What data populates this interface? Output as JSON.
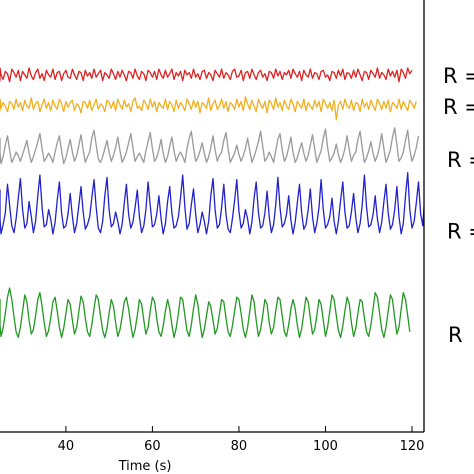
{
  "chart_data": {
    "type": "line",
    "title": "",
    "xlabel": "Time (s)",
    "ylabel": "",
    "xlim": [
      22,
      120
    ],
    "x_ticks": [
      40,
      60,
      80,
      100,
      120
    ],
    "x_tick_labels": [
      "40",
      "60",
      "80",
      "100",
      "120"
    ],
    "grid": false,
    "legend": "none",
    "x_sample_start": 22,
    "x_sample_step": 0.5,
    "series": [
      {
        "color": "#dd2222",
        "label": "R =",
        "baseline": 0.65,
        "values": [
          0.02,
          -0.05,
          0.04,
          -0.01,
          -0.03,
          0.06,
          0.0,
          -0.04,
          0.03,
          0.01,
          -0.06,
          0.05,
          0.02,
          -0.02,
          0.04,
          -0.05,
          0.03,
          0.0,
          -0.03,
          0.06,
          -0.01,
          -0.04,
          0.02,
          0.05,
          -0.03,
          0.01,
          -0.05,
          0.04,
          0.0,
          -0.02,
          0.05,
          -0.04,
          0.02,
          0.03,
          -0.05,
          0.01,
          0.04,
          -0.02,
          -0.03,
          0.05,
          0.0,
          -0.04,
          0.03,
          0.02,
          -0.05,
          0.04,
          -0.01,
          0.02,
          -0.03,
          0.05,
          -0.02,
          0.01,
          0.04,
          -0.05,
          0.02,
          0.0,
          -0.03,
          0.05,
          0.01,
          -0.04,
          0.03,
          -0.02,
          0.04,
          0.0,
          -0.05,
          0.03,
          0.02,
          -0.03,
          0.05,
          -0.01,
          -0.04,
          0.03,
          0.01,
          -0.05,
          0.04,
          0.02,
          -0.02,
          0.03,
          -0.04,
          0.05,
          0.0,
          -0.03,
          0.04,
          -0.02,
          0.01,
          0.05,
          -0.04,
          0.02,
          -0.01,
          0.03,
          -0.05,
          0.04,
          0.0,
          0.02,
          -0.03,
          0.05,
          -0.02,
          0.01,
          -0.04,
          0.03,
          0.04,
          -0.03,
          0.02,
          0.0,
          -0.05,
          0.04,
          0.01,
          -0.02,
          0.05,
          -0.03,
          0.02,
          0.0,
          -0.04,
          0.03,
          0.05,
          -0.02,
          -0.01,
          0.04,
          -0.05,
          0.02,
          0.03,
          -0.03,
          0.05,
          0.0,
          -0.04,
          0.02,
          0.04,
          -0.02,
          0.01,
          -0.05,
          0.03,
          0.02,
          -0.03,
          0.05,
          -0.01,
          0.03,
          -0.04,
          0.02,
          0.0,
          0.04,
          -0.03,
          0.05,
          0.01,
          -0.02,
          0.03,
          -0.05,
          0.04,
          0.0,
          -0.02,
          0.05,
          -0.03,
          0.02,
          0.01,
          -0.04,
          0.03,
          0.04,
          -0.02,
          0.0,
          -0.05,
          0.03,
          0.02,
          -0.03,
          0.04,
          -0.01,
          0.05,
          -0.04,
          0.02,
          0.01,
          -0.03,
          0.04,
          -0.02,
          0.05,
          0.0,
          -0.05,
          0.03,
          0.02,
          -0.04,
          0.04,
          0.01,
          -0.02,
          0.06,
          -0.03,
          0.02,
          0.0,
          -0.04,
          0.05,
          -0.01,
          0.03,
          -0.02,
          0.04,
          -0.06,
          0.05,
          0.02,
          -0.03,
          0.06,
          0.01,
          0.04
        ]
      },
      {
        "color": "#f0b020",
        "label": "R =",
        "baseline": 0.92,
        "values": [
          0.0,
          -0.04,
          0.05,
          0.01,
          -0.03,
          0.06,
          -0.02,
          0.03,
          0.0,
          -0.05,
          0.04,
          0.02,
          -0.03,
          0.06,
          -0.01,
          0.03,
          -0.04,
          0.05,
          0.0,
          -0.02,
          0.07,
          -0.03,
          0.02,
          0.04,
          -0.05,
          0.01,
          0.06,
          -0.02,
          0.03,
          -0.04,
          0.05,
          0.0,
          -0.03,
          0.06,
          0.02,
          -0.05,
          0.04,
          -0.01,
          0.03,
          0.05,
          -0.04,
          0.02,
          0.0,
          -0.06,
          0.04,
          0.03,
          -0.02,
          0.05,
          -0.04,
          0.01,
          0.06,
          -0.03,
          0.02,
          0.0,
          -0.05,
          0.05,
          0.03,
          -0.02,
          0.04,
          -0.04,
          0.06,
          0.01,
          -0.03,
          0.05,
          -0.01,
          0.02,
          -0.05,
          0.04,
          0.07,
          -0.02,
          0.0,
          -0.04,
          0.05,
          0.02,
          -0.03,
          0.06,
          -0.01,
          0.04,
          -0.05,
          0.03,
          0.0,
          -0.02,
          0.06,
          -0.03,
          0.04,
          0.01,
          -0.05,
          0.05,
          -0.02,
          0.03,
          0.0,
          -0.04,
          0.06,
          0.02,
          -0.03,
          0.05,
          -0.01,
          0.04,
          -0.06,
          0.03,
          0.01,
          -0.02,
          0.07,
          -0.04,
          0.02,
          0.05,
          -0.03,
          0.0,
          0.06,
          -0.02,
          0.04,
          -0.05,
          0.03,
          0.01,
          -0.03,
          0.06,
          -0.01,
          0.04,
          -0.04,
          0.08,
          0.02,
          -0.03,
          0.05,
          0.0,
          -0.05,
          0.06,
          0.01,
          -0.02,
          0.04,
          -0.06,
          0.05,
          0.02,
          -0.03,
          0.07,
          -0.01,
          0.03,
          -0.04,
          0.05,
          0.0,
          -0.03,
          0.06,
          0.02,
          -0.05,
          0.04,
          0.01,
          -0.02,
          0.06,
          -0.04,
          0.03,
          0.0,
          -0.03,
          0.05,
          -0.01,
          0.04,
          -0.05,
          0.06,
          0.02,
          -0.02,
          0.03,
          -0.04,
          0.05,
          -0.12,
          0.01,
          0.04,
          -0.03,
          0.06,
          0.0,
          -0.02,
          0.05,
          -0.04,
          0.03,
          0.02,
          -0.05,
          0.06,
          -0.01,
          0.03,
          -0.03,
          0.05,
          0.0,
          -0.04,
          0.06,
          0.02,
          -0.03,
          0.04,
          -0.02,
          0.05,
          -0.05,
          0.03,
          0.01,
          -0.02,
          0.06,
          -0.03,
          0.04,
          0.0,
          -0.04,
          0.05,
          0.02,
          -0.02,
          0.04
        ]
      },
      {
        "color": "#999999",
        "label": "R =",
        "baseline": 1.38,
        "values": [
          0.0,
          0.05,
          -0.02,
          0.1,
          0.18,
          0.06,
          -0.04,
          0.02,
          0.12,
          0.2,
          0.08,
          -0.03,
          0.01,
          0.06,
          0.03,
          -0.02,
          0.04,
          0.1,
          0.16,
          0.05,
          -0.03,
          0.02,
          0.08,
          0.15,
          0.22,
          0.09,
          -0.02,
          0.01,
          0.05,
          0.02,
          -0.03,
          0.06,
          0.14,
          0.2,
          0.07,
          -0.04,
          0.01,
          0.09,
          0.17,
          0.06,
          -0.02,
          0.03,
          0.12,
          0.21,
          0.08,
          -0.03,
          0.02,
          0.06,
          0.18,
          0.25,
          0.12,
          0.0,
          -0.03,
          0.02,
          0.09,
          0.16,
          0.06,
          -0.02,
          0.03,
          0.1,
          0.19,
          0.07,
          -0.03,
          0.01,
          0.06,
          0.14,
          0.22,
          0.1,
          -0.02,
          0.02,
          0.05,
          0.01,
          -0.03,
          0.07,
          0.15,
          0.23,
          0.09,
          -0.02,
          0.01,
          0.08,
          0.17,
          0.05,
          -0.03,
          0.02,
          0.11,
          0.19,
          0.07,
          -0.02,
          0.03,
          0.06,
          0.02,
          -0.03,
          0.09,
          0.18,
          0.24,
          0.1,
          -0.02,
          0.01,
          0.07,
          0.14,
          0.05,
          -0.03,
          0.02,
          0.1,
          0.2,
          0.08,
          -0.02,
          0.03,
          0.06,
          0.16,
          0.23,
          0.09,
          -0.03,
          0.01,
          0.05,
          0.12,
          0.04,
          -0.02,
          0.03,
          0.09,
          0.18,
          0.07,
          -0.03,
          0.02,
          0.08,
          0.15,
          0.24,
          0.11,
          -0.02,
          0.01,
          0.06,
          0.02,
          -0.03,
          0.07,
          0.17,
          0.22,
          0.08,
          -0.02,
          0.02,
          0.1,
          0.19,
          0.06,
          -0.03,
          0.01,
          0.08,
          0.14,
          0.05,
          -0.02,
          0.03,
          0.12,
          0.21,
          0.09,
          -0.03,
          0.02,
          0.07,
          0.18,
          0.26,
          0.1,
          -0.02,
          0.01,
          0.05,
          0.13,
          0.04,
          -0.03,
          0.02,
          0.09,
          0.2,
          0.08,
          -0.02,
          0.03,
          0.06,
          0.17,
          0.24,
          0.1,
          -0.03,
          0.01,
          0.07,
          0.15,
          0.05,
          -0.02,
          0.03,
          0.11,
          0.22,
          0.09,
          -0.03,
          0.02,
          0.08,
          0.19,
          0.27,
          0.12,
          -0.02,
          0.01,
          0.06,
          0.16,
          0.25,
          0.08,
          -0.02,
          0.03,
          0.1,
          0.2
        ]
      },
      {
        "color": "#2222cc",
        "label": "R =",
        "baseline": 2.0,
        "values": [
          0.0,
          0.08,
          0.02,
          0.2,
          0.35,
          0.1,
          -0.03,
          0.05,
          0.15,
          0.4,
          0.22,
          0.04,
          -0.02,
          0.1,
          0.28,
          0.45,
          0.18,
          0.02,
          0.06,
          0.25,
          0.12,
          -0.02,
          0.08,
          0.3,
          0.48,
          0.2,
          0.03,
          0.05,
          0.18,
          0.1,
          -0.03,
          0.07,
          0.26,
          0.42,
          0.15,
          0.02,
          0.04,
          0.14,
          0.32,
          0.12,
          -0.02,
          0.06,
          0.22,
          0.38,
          0.16,
          0.01,
          0.05,
          0.12,
          0.28,
          0.44,
          0.2,
          0.02,
          -0.02,
          0.08,
          0.3,
          0.46,
          0.18,
          0.03,
          0.06,
          0.16,
          0.08,
          -0.03,
          0.05,
          0.24,
          0.4,
          0.14,
          0.02,
          0.07,
          0.2,
          0.35,
          0.12,
          -0.02,
          0.04,
          0.18,
          0.42,
          0.22,
          0.03,
          0.05,
          0.14,
          0.3,
          0.1,
          -0.03,
          0.06,
          0.25,
          0.38,
          0.15,
          0.02,
          0.04,
          0.12,
          0.28,
          0.48,
          0.2,
          0.01,
          0.06,
          0.22,
          0.36,
          0.14,
          -0.02,
          0.05,
          0.16,
          0.08,
          -0.03,
          0.08,
          0.3,
          0.45,
          0.18,
          0.02,
          0.05,
          0.2,
          0.4,
          0.14,
          0.01,
          -0.02,
          0.1,
          0.26,
          0.44,
          0.17,
          0.02,
          0.06,
          0.18,
          0.1,
          -0.03,
          0.07,
          0.28,
          0.42,
          0.16,
          0.02,
          0.04,
          0.15,
          0.34,
          0.12,
          -0.02,
          0.05,
          0.22,
          0.46,
          0.2,
          0.03,
          0.06,
          0.14,
          0.3,
          0.09,
          -0.03,
          0.07,
          0.24,
          0.4,
          0.15,
          0.01,
          0.05,
          0.18,
          0.36,
          0.12,
          -0.02,
          0.06,
          0.2,
          0.44,
          0.18,
          0.02,
          0.05,
          0.12,
          0.28,
          0.08,
          -0.03,
          0.08,
          0.26,
          0.42,
          0.16,
          0.02,
          0.04,
          0.16,
          0.32,
          0.11,
          -0.02,
          0.06,
          0.22,
          0.48,
          0.2,
          0.03,
          0.05,
          0.14,
          0.3,
          0.1,
          -0.02,
          0.07,
          0.25,
          0.4,
          0.15,
          0.01,
          0.05,
          0.18,
          0.38,
          0.12,
          -0.03,
          0.06,
          0.3,
          0.5,
          0.18,
          0.02,
          0.08,
          0.24,
          0.42,
          0.14,
          0.04,
          0.2
        ]
      },
      {
        "color": "#229922",
        "label": "R",
        "baseline": 2.9,
        "values": [
          0.0,
          0.1,
          0.22,
          0.3,
          0.2,
          0.08,
          -0.02,
          0.05,
          0.18,
          0.32,
          0.4,
          0.3,
          0.15,
          0.02,
          -0.03,
          0.06,
          0.2,
          0.34,
          0.28,
          0.12,
          0.0,
          0.04,
          0.16,
          0.3,
          0.36,
          0.24,
          0.1,
          -0.02,
          0.03,
          0.14,
          0.28,
          0.32,
          0.2,
          0.06,
          -0.03,
          0.05,
          0.18,
          0.3,
          0.26,
          0.12,
          0.0,
          0.06,
          0.2,
          0.33,
          0.28,
          0.14,
          0.02,
          -0.02,
          0.08,
          0.22,
          0.34,
          0.3,
          0.16,
          0.03,
          -0.03,
          0.05,
          0.18,
          0.3,
          0.24,
          0.1,
          -0.02,
          0.04,
          0.15,
          0.28,
          0.32,
          0.22,
          0.08,
          -0.03,
          0.04,
          0.16,
          0.3,
          0.26,
          0.12,
          0.0,
          0.06,
          0.2,
          0.32,
          0.28,
          0.14,
          0.02,
          -0.02,
          0.07,
          0.2,
          0.3,
          0.22,
          0.08,
          -0.03,
          0.05,
          0.18,
          0.32,
          0.3,
          0.16,
          0.03,
          -0.02,
          0.08,
          0.22,
          0.34,
          0.26,
          0.1,
          -0.03,
          0.04,
          0.16,
          0.28,
          0.24,
          0.12,
          0.0,
          0.05,
          0.18,
          0.3,
          0.28,
          0.14,
          0.02,
          -0.02,
          0.07,
          0.2,
          0.32,
          0.3,
          0.18,
          0.04,
          -0.03,
          0.06,
          0.2,
          0.34,
          0.28,
          0.12,
          -0.02,
          0.04,
          0.16,
          0.3,
          0.26,
          0.1,
          0.0,
          0.06,
          0.2,
          0.32,
          0.3,
          0.16,
          0.02,
          -0.02,
          0.08,
          0.22,
          0.3,
          0.22,
          0.08,
          -0.03,
          0.05,
          0.18,
          0.32,
          0.28,
          0.14,
          0.0,
          0.04,
          0.16,
          0.3,
          0.26,
          0.12,
          -0.02,
          0.06,
          0.2,
          0.34,
          0.3,
          0.16,
          0.03,
          -0.03,
          0.07,
          0.2,
          0.32,
          0.26,
          0.1,
          -0.02,
          0.05,
          0.18,
          0.3,
          0.28,
          0.14,
          0.02,
          -0.02,
          0.08,
          0.22,
          0.36,
          0.32,
          0.18,
          0.04,
          -0.03,
          0.06,
          0.2,
          0.34,
          0.3,
          0.14,
          0.0,
          0.06,
          0.22,
          0.36,
          0.3,
          0.16,
          0.02
        ]
      }
    ]
  }
}
